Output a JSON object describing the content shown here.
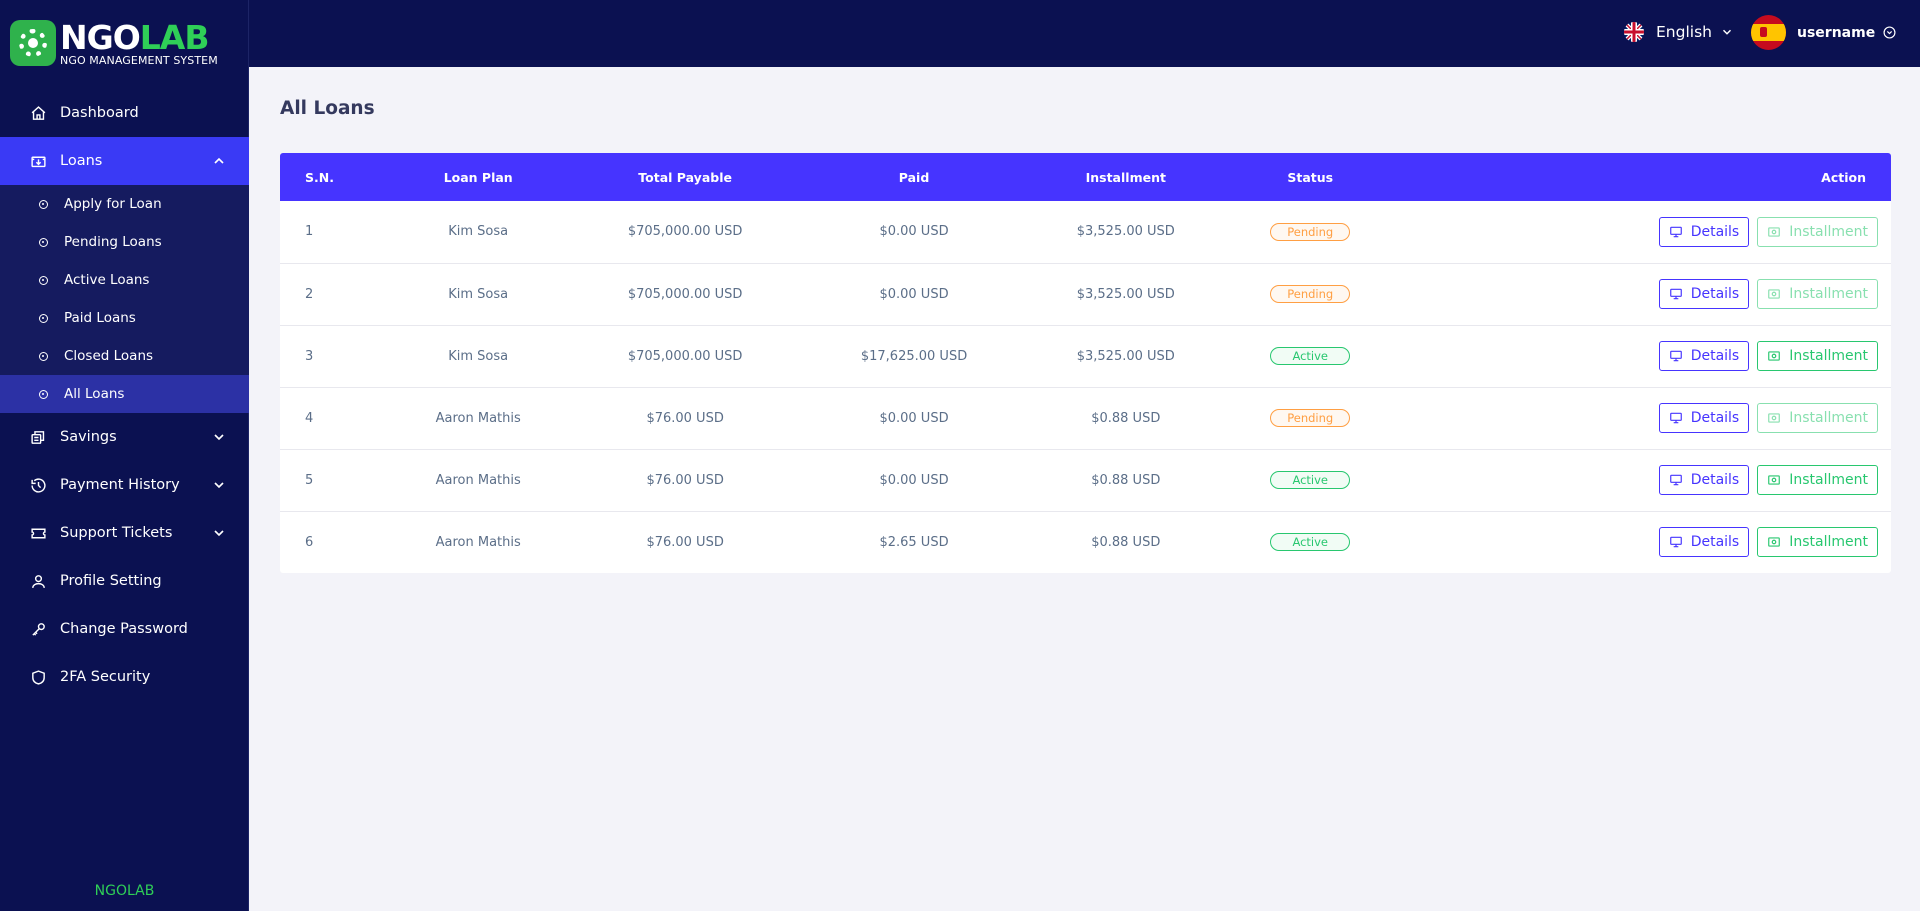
{
  "brand": {
    "logo_ngo": "NGO",
    "logo_lab": "LAB",
    "logo_sub": "NGO MANAGEMENT SYSTEM",
    "footer": "NGOLAB"
  },
  "sidebar": {
    "dashboard": "Dashboard",
    "loans": "Loans",
    "loan_sub": [
      "Apply for Loan",
      "Pending Loans",
      "Active Loans",
      "Paid Loans",
      "Closed Loans",
      "All Loans"
    ],
    "savings": "Savings",
    "payment_history": "Payment History",
    "support_tickets": "Support Tickets",
    "profile_setting": "Profile Setting",
    "change_password": "Change Password",
    "twofa": "2FA Security"
  },
  "topbar": {
    "language": "English",
    "username": "username"
  },
  "page": {
    "title": "All Loans"
  },
  "table": {
    "headers": [
      "S.N.",
      "Loan Plan",
      "Total Payable",
      "Paid",
      "Installment",
      "Status",
      "Action"
    ],
    "details_label": "Details",
    "installment_label": "Installment",
    "rows": [
      {
        "sn": "1",
        "plan": "Kim Sosa",
        "total": "$705,000.00 USD",
        "paid": "$0.00 USD",
        "installment": "$3,525.00 USD",
        "status": "Pending"
      },
      {
        "sn": "2",
        "plan": "Kim Sosa",
        "total": "$705,000.00 USD",
        "paid": "$0.00 USD",
        "installment": "$3,525.00 USD",
        "status": "Pending"
      },
      {
        "sn": "3",
        "plan": "Kim Sosa",
        "total": "$705,000.00 USD",
        "paid": "$17,625.00 USD",
        "installment": "$3,525.00 USD",
        "status": "Active"
      },
      {
        "sn": "4",
        "plan": "Aaron Mathis",
        "total": "$76.00 USD",
        "paid": "$0.00 USD",
        "installment": "$0.88 USD",
        "status": "Pending"
      },
      {
        "sn": "5",
        "plan": "Aaron Mathis",
        "total": "$76.00 USD",
        "paid": "$0.00 USD",
        "installment": "$0.88 USD",
        "status": "Active"
      },
      {
        "sn": "6",
        "plan": "Aaron Mathis",
        "total": "$76.00 USD",
        "paid": "$2.65 USD",
        "installment": "$0.88 USD",
        "status": "Active"
      }
    ]
  },
  "colors": {
    "sidebar_bg": "#0b1151",
    "accent": "#4634ff",
    "brand_green": "#2fcf57",
    "pending": "#ff9f43",
    "active": "#28c76f"
  }
}
